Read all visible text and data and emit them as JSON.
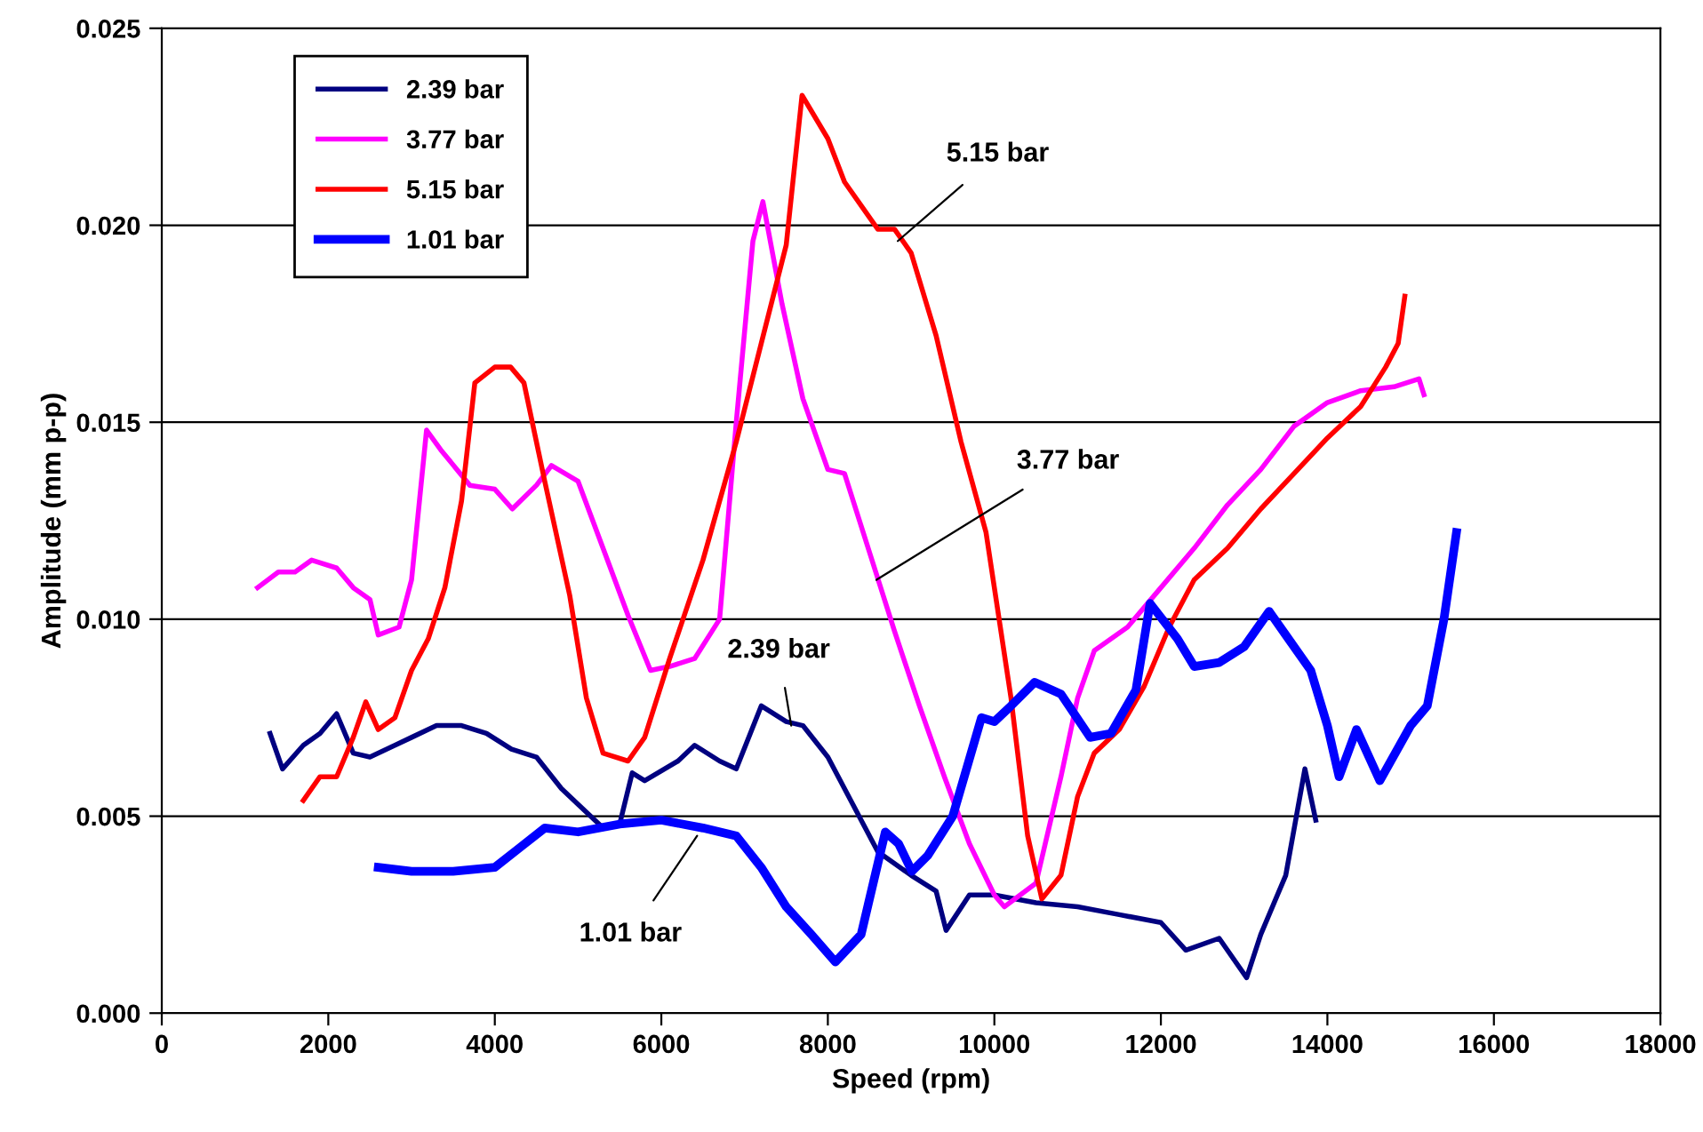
{
  "chart_data": {
    "type": "line",
    "xlabel": "Speed (rpm)",
    "ylabel": "Amplitude (mm p-p)",
    "xlim": [
      0,
      18000
    ],
    "xticks": [
      0,
      2000,
      4000,
      6000,
      8000,
      10000,
      12000,
      14000,
      16000,
      18000
    ],
    "ylim": [
      0,
      0.025
    ],
    "yticks": [
      {
        "value": 0,
        "label": "0.000"
      },
      {
        "value": 0.005,
        "label": "0.005"
      },
      {
        "value": 0.01,
        "label": "0.010"
      },
      {
        "value": 0.015,
        "label": "0.015"
      },
      {
        "value": 0.02,
        "label": "0.020"
      },
      {
        "value": 0.025,
        "label": "0.025"
      }
    ],
    "grid": "y",
    "legend": "top left",
    "marker": "none",
    "line_style": "solid",
    "series": [
      {
        "name": "2.39 bar",
        "color": "#000080",
        "x": [
          1300,
          1450,
          1700,
          1900,
          2100,
          2300,
          2500,
          2800,
          3000,
          3300,
          3600,
          3900,
          4200,
          4500,
          4800,
          5000,
          5300,
          5500,
          5650,
          5800,
          6200,
          6400,
          6700,
          6900,
          7200,
          7500,
          7700,
          8000,
          8300,
          8600,
          9000,
          9300,
          9420,
          9700,
          10000,
          10500,
          11000,
          11500,
          12000,
          12300,
          12700,
          13030,
          13200,
          13500,
          13730,
          13860
        ],
        "values": [
          0.0071,
          0.0062,
          0.0068,
          0.0071,
          0.0076,
          0.0066,
          0.0065,
          0.0068,
          0.007,
          0.0073,
          0.0073,
          0.0071,
          0.0067,
          0.0065,
          0.0057,
          0.0053,
          0.0047,
          0.0048,
          0.0061,
          0.0059,
          0.0064,
          0.0068,
          0.0064,
          0.0062,
          0.0078,
          0.0074,
          0.0073,
          0.0065,
          0.0053,
          0.0041,
          0.0035,
          0.0031,
          0.0021,
          0.003,
          0.003,
          0.0028,
          0.0027,
          0.0025,
          0.0023,
          0.0016,
          0.0019,
          0.0009,
          0.002,
          0.0035,
          0.0062,
          0.0049
        ]
      },
      {
        "name": "3.77 bar",
        "color": "#ff00ff",
        "x": [
          1150,
          1400,
          1600,
          1800,
          2100,
          2300,
          2500,
          2600,
          2850,
          3000,
          3180,
          3350,
          3700,
          4000,
          4210,
          4500,
          4680,
          5000,
          5300,
          5600,
          5870,
          6100,
          6400,
          6700,
          6900,
          7100,
          7220,
          7450,
          7700,
          8000,
          8200,
          8500,
          8800,
          9100,
          9400,
          9700,
          10000,
          10120,
          10500,
          10800,
          11000,
          11200,
          11600,
          12000,
          12400,
          12800,
          13200,
          13600,
          14000,
          14400,
          14800,
          15100,
          15160
        ],
        "values": [
          0.0108,
          0.0112,
          0.0112,
          0.0115,
          0.0113,
          0.0108,
          0.0105,
          0.0096,
          0.0098,
          0.011,
          0.0148,
          0.0143,
          0.0134,
          0.0133,
          0.0128,
          0.0134,
          0.0139,
          0.0135,
          0.0118,
          0.0101,
          0.0087,
          0.0088,
          0.009,
          0.01,
          0.015,
          0.0196,
          0.0206,
          0.018,
          0.0156,
          0.0138,
          0.0137,
          0.0117,
          0.0097,
          0.0078,
          0.006,
          0.0043,
          0.003,
          0.0027,
          0.0033,
          0.006,
          0.008,
          0.0092,
          0.0098,
          0.0108,
          0.0118,
          0.0129,
          0.0138,
          0.0149,
          0.0155,
          0.0158,
          0.0159,
          0.0161,
          0.0157
        ]
      },
      {
        "name": "5.15 bar",
        "color": "#ff0000",
        "x": [
          1700,
          1900,
          2100,
          2300,
          2450,
          2600,
          2800,
          3000,
          3200,
          3400,
          3600,
          3760,
          4000,
          4190,
          4350,
          4600,
          4900,
          5100,
          5300,
          5600,
          5800,
          6100,
          6500,
          6900,
          7200,
          7500,
          7690,
          8000,
          8200,
          8400,
          8600,
          8800,
          9000,
          9300,
          9600,
          9900,
          10200,
          10400,
          10570,
          10800,
          11000,
          11200,
          11500,
          11800,
          12100,
          12400,
          12800,
          13200,
          13600,
          14000,
          14400,
          14700,
          14850,
          14930
        ],
        "values": [
          0.0054,
          0.006,
          0.006,
          0.007,
          0.0079,
          0.0072,
          0.0075,
          0.0087,
          0.0095,
          0.0108,
          0.013,
          0.016,
          0.0164,
          0.0164,
          0.016,
          0.0135,
          0.0106,
          0.008,
          0.0066,
          0.0064,
          0.007,
          0.009,
          0.0115,
          0.0145,
          0.017,
          0.0195,
          0.0233,
          0.0222,
          0.0211,
          0.0205,
          0.0199,
          0.0199,
          0.0193,
          0.0172,
          0.0145,
          0.0122,
          0.008,
          0.0045,
          0.0029,
          0.0035,
          0.0055,
          0.0066,
          0.0072,
          0.0083,
          0.0098,
          0.011,
          0.0118,
          0.0128,
          0.0137,
          0.0146,
          0.0154,
          0.0164,
          0.017,
          0.0182
        ]
      },
      {
        "name": "1.01 bar",
        "color": "#0000ff",
        "x": [
          2600,
          3000,
          3500,
          4000,
          4300,
          4600,
          5000,
          5500,
          6000,
          6500,
          6900,
          7200,
          7500,
          7800,
          8090,
          8400,
          8690,
          8850,
          9010,
          9200,
          9500,
          9845,
          10000,
          10200,
          10485,
          10800,
          11150,
          11400,
          11700,
          11870,
          12200,
          12400,
          12700,
          13000,
          13300,
          13500,
          13800,
          14000,
          14140,
          14350,
          14630,
          15000,
          15200,
          15400,
          15550
        ],
        "values": [
          0.0037,
          0.0036,
          0.0036,
          0.0037,
          0.0042,
          0.0047,
          0.0046,
          0.0048,
          0.0049,
          0.0047,
          0.0045,
          0.0037,
          0.0027,
          0.002,
          0.0013,
          0.002,
          0.0046,
          0.0043,
          0.0036,
          0.004,
          0.005,
          0.0075,
          0.0074,
          0.0078,
          0.0084,
          0.0081,
          0.007,
          0.0071,
          0.0082,
          0.0104,
          0.0095,
          0.0088,
          0.0089,
          0.0093,
          0.0102,
          0.0096,
          0.0087,
          0.0073,
          0.006,
          0.0072,
          0.0059,
          0.0073,
          0.0078,
          0.01,
          0.0122
        ]
      }
    ],
    "annotations": [
      {
        "text": "5.15 bar",
        "x": 8840,
        "y": 0.0196
      },
      {
        "text": "3.77 bar",
        "x": 8584,
        "y": 0.011
      },
      {
        "text": "2.39 bar",
        "x": 7560,
        "y": 0.0073
      },
      {
        "text": "1.01 bar",
        "x": 6430,
        "y": 0.0045
      }
    ]
  }
}
